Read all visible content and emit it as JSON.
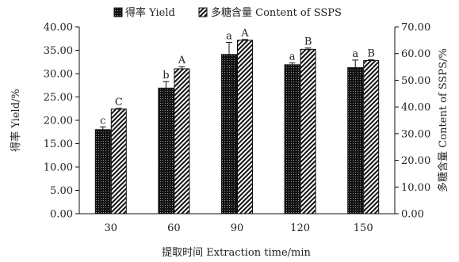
{
  "chart_data": {
    "type": "bar",
    "xlabel": "提取时间 Extraction time/min",
    "ylabel_left": "得率 Yield/%",
    "ylabel_right": "多糖含量 Content of SSPS/%",
    "categories": [
      "30",
      "60",
      "90",
      "120",
      "150"
    ],
    "ylim_left": [
      0,
      40
    ],
    "ylim_right": [
      0,
      70
    ],
    "yticks_left": [
      "0.00",
      "5.00",
      "10.00",
      "15.00",
      "20.00",
      "25.00",
      "30.00",
      "35.00",
      "40.00"
    ],
    "yticks_right": [
      "0.00",
      "10.00",
      "20.00",
      "30.00",
      "40.00",
      "50.00",
      "60.00",
      "70.00"
    ],
    "legend_position": "top",
    "series": [
      {
        "name": "得率 Yield",
        "axis": "left",
        "pattern": "dotted-black",
        "values": [
          18.0,
          26.9,
          34.1,
          31.9,
          31.3
        ],
        "errors": [
          0.6,
          1.4,
          2.6,
          0.4,
          1.6
        ],
        "labels": [
          "c",
          "b",
          "a",
          "a",
          "a"
        ]
      },
      {
        "name": "多糖含量 Content of SSPS",
        "axis": "right",
        "pattern": "hatched",
        "values": [
          39.2,
          54.3,
          65.0,
          61.6,
          57.4
        ],
        "errors": [
          0.3,
          0.8,
          0.3,
          0.5,
          0.3
        ],
        "labels": [
          "C",
          "A",
          "A",
          "B",
          "B"
        ]
      }
    ]
  }
}
